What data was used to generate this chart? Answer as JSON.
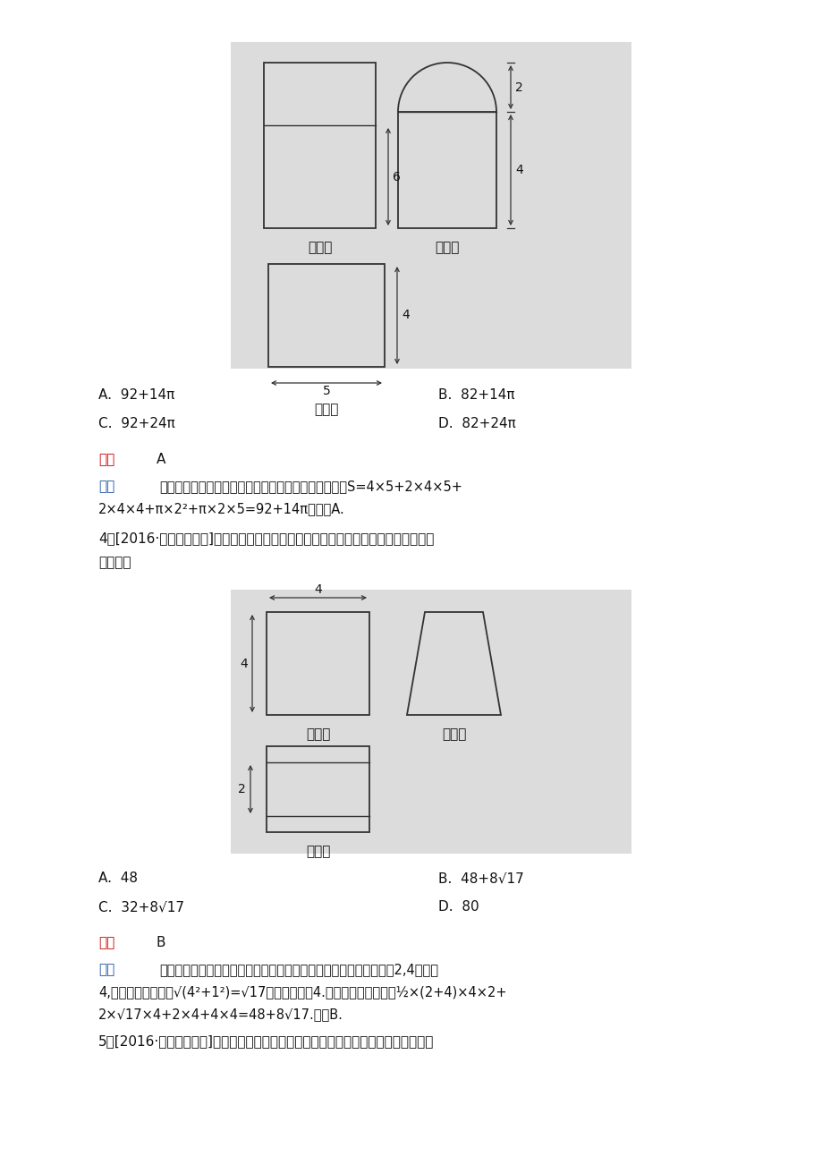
{
  "white": "#ffffff",
  "light_gray": "#e8e8e8",
  "black": "#111111",
  "dark_gray": "#333333",
  "red": "#cc0000",
  "blue": "#1a52a0",
  "fig_width": 9.2,
  "fig_height": 13.02,
  "dpi": 100,
  "prev_A": "A.  92+14π",
  "prev_B": "B.  82+14π",
  "prev_C": "C.  92+24π",
  "prev_D": "D.  82+24π",
  "prev_ans": "A",
  "q3_A": "A.  48",
  "q3_B": "B.  48+8√17",
  "q3_C": "C.  32+8√17",
  "q3_D": "D.  80",
  "q3_ans": "B"
}
